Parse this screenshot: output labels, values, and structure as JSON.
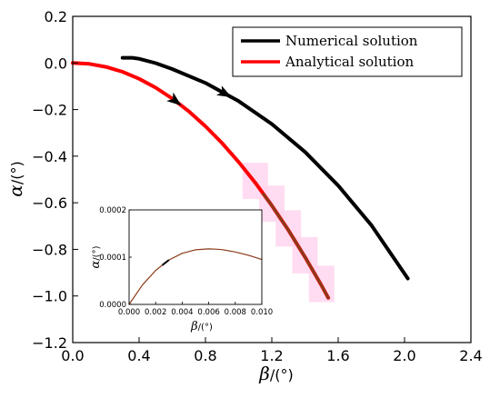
{
  "chart_data": [
    {
      "type": "line",
      "xlabel": {
        "symbol": "β",
        "unit": "/(°)"
      },
      "ylabel": {
        "symbol": "α",
        "unit": "/(°)"
      },
      "xlim": [
        0.0,
        2.4
      ],
      "ylim": [
        -1.2,
        0.2
      ],
      "xticks": [
        0.0,
        0.4,
        0.8,
        1.2,
        1.6,
        2.0,
        2.4
      ],
      "xtick_labels": [
        "0.0",
        "0.4",
        "0.8",
        "1.2",
        "1.6",
        "2.0",
        "2.4"
      ],
      "yticks": [
        0.2,
        0.0,
        -0.2,
        -0.4,
        -0.6,
        -0.8,
        -1.0,
        -1.2
      ],
      "ytick_labels": [
        "0.2",
        "0.0",
        "−0.2",
        "−0.4",
        "−0.6",
        "−0.8",
        "−1.0",
        "−1.2"
      ],
      "grid": false,
      "legend_position": "top-right",
      "series": [
        {
          "name": "Numerical solution",
          "color": "#000000",
          "x": [
            0.3,
            0.36,
            0.4,
            0.5,
            0.6,
            0.8,
            1.0,
            1.2,
            1.4,
            1.6,
            1.8,
            2.02
          ],
          "y": [
            0.022,
            0.022,
            0.018,
            -0.001,
            -0.026,
            -0.086,
            -0.164,
            -0.262,
            -0.382,
            -0.526,
            -0.696,
            -0.925
          ],
          "arrow_at_x": 0.92
        },
        {
          "name": "Analytical solution",
          "color": "#ff0000",
          "x": [
            0.0,
            0.1,
            0.2,
            0.3,
            0.4,
            0.5,
            0.6,
            0.7,
            0.8,
            0.9,
            1.0,
            1.1,
            1.2,
            1.3,
            1.4,
            1.5,
            1.54
          ],
          "y": [
            0.0,
            -0.004,
            -0.017,
            -0.038,
            -0.068,
            -0.106,
            -0.153,
            -0.208,
            -0.272,
            -0.344,
            -0.425,
            -0.514,
            -0.612,
            -0.718,
            -0.833,
            -0.956,
            -1.008
          ],
          "arrow_at_x": 0.62
        }
      ]
    },
    {
      "type": "line",
      "role": "inset",
      "xlabel": {
        "symbol": "β",
        "unit": "/(°)"
      },
      "ylabel": {
        "symbol": "α",
        "unit": "/(°)"
      },
      "xlim": [
        0.0,
        0.01
      ],
      "ylim": [
        0.0,
        0.0002
      ],
      "xticks": [
        0.0,
        0.002,
        0.004,
        0.006,
        0.008,
        0.01
      ],
      "xtick_labels": [
        "0.000",
        "0.002",
        "0.004",
        "0.006",
        "0.008",
        "0.010"
      ],
      "yticks": [
        0.0,
        0.0001,
        0.0002
      ],
      "ytick_labels": [
        "0.0000",
        "0.0001",
        "0.0002"
      ],
      "series": [
        {
          "color": "#8b3a1a",
          "x": [
            0.0,
            0.001,
            0.002,
            0.003,
            0.004,
            0.005,
            0.006,
            0.0065,
            0.007,
            0.008,
            0.009,
            0.01
          ],
          "y": [
            0.0,
            4.1e-05,
            7.2e-05,
            9.4e-05,
            0.000108,
            0.0001155,
            0.0001175,
            0.000117,
            0.000116,
            0.000111,
            0.000104,
            9.5e-05
          ]
        }
      ]
    }
  ]
}
